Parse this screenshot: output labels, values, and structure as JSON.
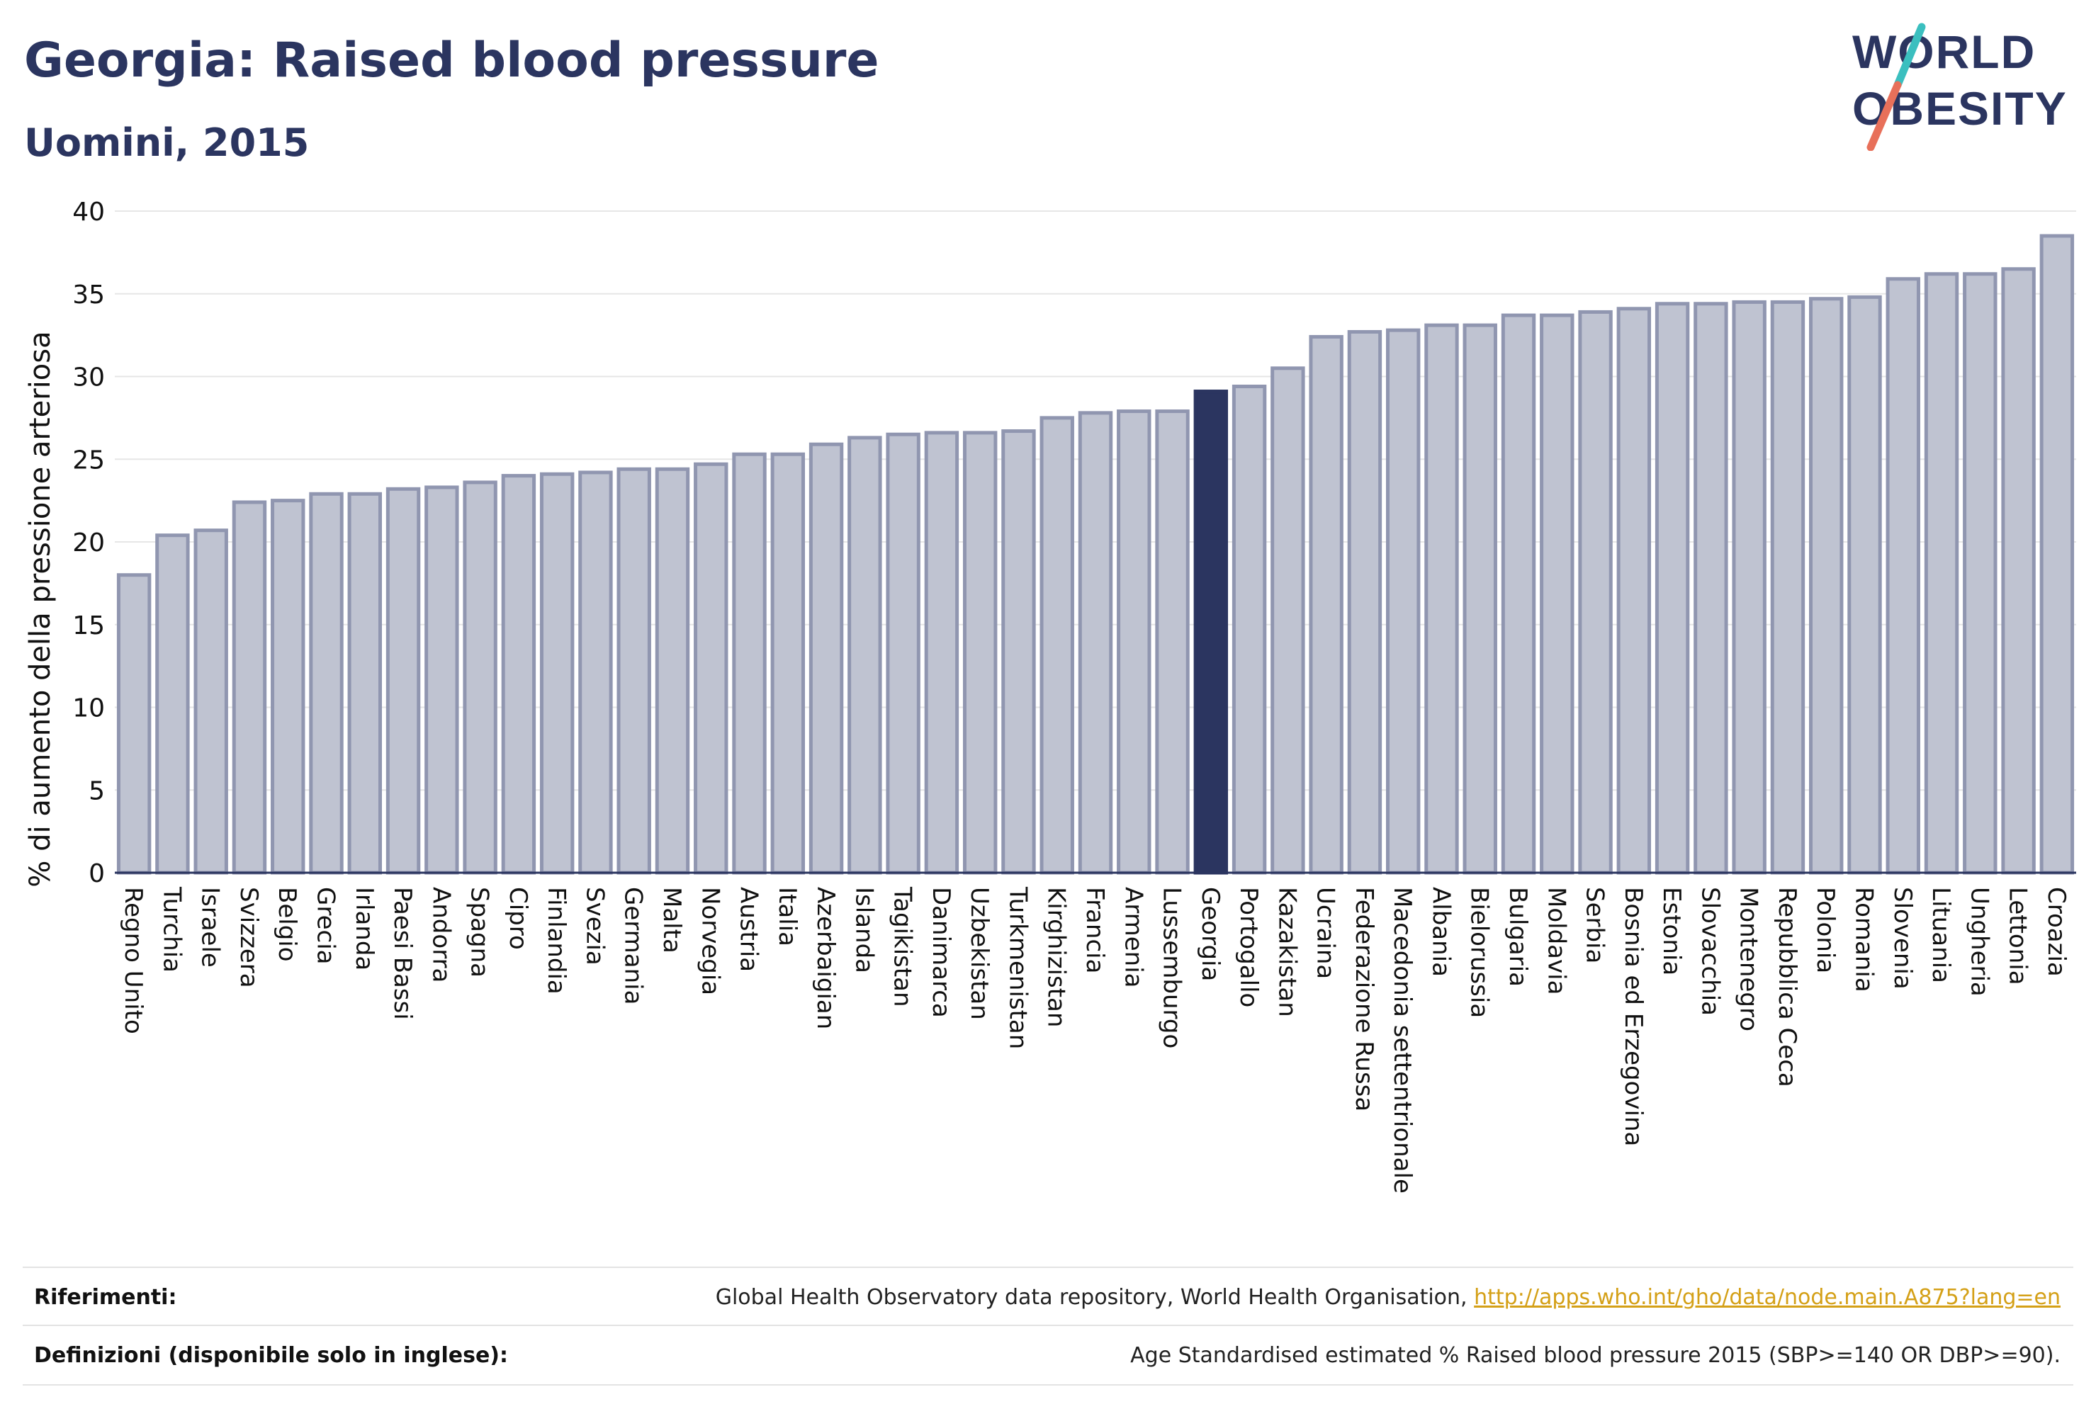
{
  "header": {
    "title": "Georgia: Raised blood pressure",
    "subtitle": "Uomini, 2015"
  },
  "logo": {
    "line1": "WORLD",
    "line2": "OBESITY",
    "colors": {
      "text": "#2b3560",
      "slash_teal": "#3bbfbf",
      "slash_coral": "#e8705a"
    }
  },
  "colors": {
    "bar_fill": "#bfc3d1",
    "bar_stroke": "#9096b0",
    "highlight_fill": "#2b3560",
    "axis": "#2b3560",
    "grid": "#e6e6e6"
  },
  "chart_data": {
    "type": "bar",
    "title": "Georgia: Raised blood pressure",
    "subtitle": "Uomini, 2015",
    "xlabel": "",
    "ylabel": "% di aumento della pressione arteriosa",
    "ylim": [
      0,
      40
    ],
    "yticks": [
      0,
      5,
      10,
      15,
      20,
      25,
      30,
      35,
      40
    ],
    "grid": true,
    "highlight": "Georgia",
    "categories": [
      "Regno Unito",
      "Turchia",
      "Israele",
      "Svizzera",
      "Belgio",
      "Grecia",
      "Irlanda",
      "Paesi Bassi",
      "Andorra",
      "Spagna",
      "Cipro",
      "Finlandia",
      "Svezia",
      "Germania",
      "Malta",
      "Norvegia",
      "Austria",
      "Italia",
      "Azerbaigian",
      "Islanda",
      "Tagikistan",
      "Danimarca",
      "Uzbekistan",
      "Turkmenistan",
      "Kirghizistan",
      "Francia",
      "Armenia",
      "Lussemburgo",
      "Georgia",
      "Portogallo",
      "Kazakistan",
      "Ucraina",
      "Federazione Russa",
      "Macedonia settentrionale",
      "Albania",
      "Bielorussia",
      "Bulgaria",
      "Moldavia",
      "Serbia",
      "Bosnia ed Erzegovina",
      "Estonia",
      "Slovacchia",
      "Montenegro",
      "Repubblica Ceca",
      "Polonia",
      "Romania",
      "Slovenia",
      "Lituania",
      "Ungheria",
      "Lettonia",
      "Croazia"
    ],
    "values": [
      18.0,
      20.4,
      20.7,
      22.4,
      22.5,
      22.9,
      22.9,
      23.2,
      23.3,
      23.6,
      24.0,
      24.1,
      24.2,
      24.4,
      24.4,
      24.7,
      25.3,
      25.3,
      25.9,
      26.3,
      26.5,
      26.6,
      26.6,
      26.7,
      27.5,
      27.8,
      27.9,
      27.9,
      29.1,
      29.4,
      30.5,
      32.4,
      32.7,
      32.8,
      33.1,
      33.1,
      33.7,
      33.7,
      33.9,
      34.1,
      34.4,
      34.4,
      34.5,
      34.5,
      34.7,
      34.8,
      35.9,
      36.2,
      36.2,
      36.5,
      38.5
    ]
  },
  "footer": {
    "references_label": "Riferimenti:",
    "references_text": "Global Health Observatory data repository, World Health Organisation,",
    "references_link": "http://apps.who.int/gho/data/node.main.A875?lang=en",
    "definitions_label": "Definizioni (disponibile solo in inglese):",
    "definitions_text": "Age Standardised estimated % Raised blood pressure 2015 (SBP>=140 OR DBP>=90)."
  }
}
